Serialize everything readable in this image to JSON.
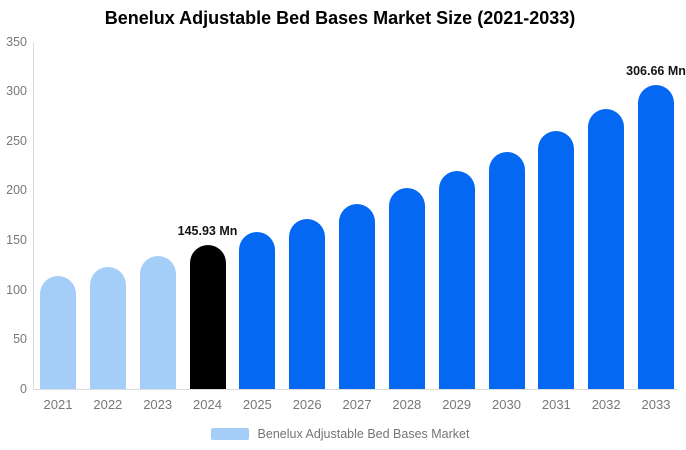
{
  "title": "Benelux Adjustable Bed Bases Market Size (2021-2033)",
  "legend": {
    "label": "Benelux Adjustable Bed Bases Market"
  },
  "colors": {
    "historical": "#a4cdf7",
    "current": "#000000",
    "forecast": "#0568f2",
    "axis_line": "#dcdcdc",
    "tick_text": "#787878",
    "annotation_text": "#141414"
  },
  "chart_data": {
    "type": "bar",
    "title": "Benelux Adjustable Bed Bases Market Size (2021-2033)",
    "unit": "Mn",
    "xlabel": "",
    "ylabel": "",
    "ylim": [
      0,
      350
    ],
    "yticks": [
      0,
      50,
      100,
      150,
      200,
      250,
      300,
      350
    ],
    "grid": false,
    "legend_position": "bottom-center",
    "categories": [
      "2021",
      "2022",
      "2023",
      "2024",
      "2025",
      "2026",
      "2027",
      "2028",
      "2029",
      "2030",
      "2031",
      "2032",
      "2033"
    ],
    "values": [
      113.93,
      123.73,
      134.37,
      145.93,
      158.48,
      172.11,
      186.91,
      202.99,
      220.45,
      239.41,
      260.0,
      282.36,
      306.66
    ],
    "roles": [
      "historical",
      "historical",
      "historical",
      "current",
      "forecast",
      "forecast",
      "forecast",
      "forecast",
      "forecast",
      "forecast",
      "forecast",
      "forecast",
      "forecast"
    ],
    "annotations": [
      {
        "category": "2024",
        "text": "145.93 Mn"
      },
      {
        "category": "2033",
        "text": "306.66 Mn"
      }
    ],
    "series": [
      {
        "name": "Benelux Adjustable Bed Bases Market",
        "swatch_color": "#a4cdf7"
      }
    ]
  }
}
